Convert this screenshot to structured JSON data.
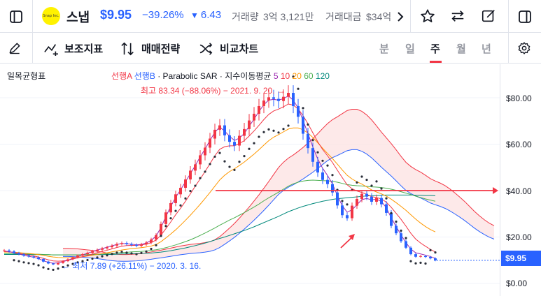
{
  "header": {
    "logo_text": "Snap Inc.",
    "symbol_name": "스냅",
    "price": "$9.95",
    "change_pct": "−39.26%",
    "change_abs": "6.43",
    "volume_label": "거래량",
    "volume_value": "3억 3,121만",
    "amount_label": "거래대금",
    "amount_value": "$34억",
    "icons": [
      "sidebar-left-icon",
      "chevron-right-icon",
      "star-icon",
      "compare-icon",
      "edit-icon",
      "sidebar-right-icon"
    ]
  },
  "toolbar": {
    "tools": [
      {
        "label": "보조지표",
        "icon": "indicators-icon"
      },
      {
        "label": "매매전략",
        "icon": "strategy-icon"
      },
      {
        "label": "비교차트",
        "icon": "compare-chart-icon"
      }
    ],
    "periods": [
      "분",
      "일",
      "주",
      "월",
      "년"
    ],
    "active_period": "주",
    "settings_icon": "gear-icon",
    "draw_icon": "pen-icon"
  },
  "legend": {
    "indicator": "일목균형표",
    "items": [
      {
        "text": "선행A",
        "color": "#f23645"
      },
      {
        "text": " 선행B",
        "color": "#2962ff"
      },
      {
        "text": " · Parabolic SAR · 지수이동평균 ",
        "color": "#131722"
      },
      {
        "text": "5",
        "color": "#9c27b0"
      },
      {
        "text": " 10",
        "color": "#f23645"
      },
      {
        "text": " 20",
        "color": "#ff9800"
      },
      {
        "text": " 60",
        "color": "#4caf50"
      },
      {
        "text": " 120",
        "color": "#00897b"
      }
    ]
  },
  "annotations": {
    "high": "최고 83.34 (−88.06%) − 2021. 9. 20.",
    "low": "최저 7.89 (+26.11%) − 2020. 3. 16."
  },
  "axis": {
    "ticks": [
      "$80.00",
      "$60.00",
      "$40.00",
      "$20.00",
      "$0.00"
    ],
    "last_price": "$9.95"
  },
  "colors": {
    "up": "#f23645",
    "down": "#2962ff",
    "accent": "#2962ff",
    "cloud_up": "#fce4e4",
    "cloud_down": "#e3ecfd"
  },
  "chart_data": {
    "type": "line",
    "ylim": [
      0,
      90
    ],
    "ytick_values": [
      80,
      60,
      40,
      20,
      0
    ],
    "high": 83.34,
    "low": 7.89,
    "last": 9.95,
    "horizontal_line": 40,
    "close": [
      14.2,
      13.8,
      13.1,
      12.6,
      12.0,
      11.6,
      11.2,
      10.5,
      9.4,
      8.6,
      8.2,
      8.8,
      9.6,
      10.4,
      11.2,
      12.0,
      12.6,
      13.2,
      13.9,
      14.5,
      15.1,
      15.6,
      16.3,
      17.0,
      17.4,
      17.0,
      16.6,
      16.2,
      16.8,
      17.6,
      18.9,
      20.8,
      25.6,
      30.6,
      34.6,
      38.4,
      41.2,
      44.8,
      48.6,
      51.3,
      55.2,
      58.5,
      62.4,
      66.2,
      68.1,
      63.8,
      61.0,
      59.4,
      63.6,
      66.5,
      70.2,
      73.1,
      76.4,
      78.8,
      80.2,
      79.5,
      78.6,
      80.4,
      82.1,
      76.4,
      71.8,
      64.5,
      58.3,
      52.4,
      47.8,
      44.6,
      42.8,
      39.2,
      33.6,
      29.4,
      28.1,
      33.5,
      36.4,
      38.6,
      37.4,
      35.2,
      36.8,
      34.1,
      30.4,
      24.8,
      21.6,
      18.2,
      15.4,
      12.6,
      11.5,
      11.8,
      11.4,
      10.8,
      9.95
    ],
    "ema5": [
      14.0,
      13.7,
      13.2,
      12.7,
      12.1,
      11.7,
      11.3,
      10.7,
      9.8,
      9.1,
      8.7,
      8.9,
      9.4,
      10.0,
      10.8,
      11.6,
      12.3,
      13.0,
      13.7,
      14.4,
      15.0,
      15.6,
      16.2,
      16.8,
      17.2,
      17.1,
      16.9,
      16.6,
      16.8,
      17.4,
      18.6,
      20.4,
      24.1,
      28.8,
      33.2,
      37.1,
      40.3,
      43.8,
      47.3,
      50.8,
      54.5,
      57.9,
      61.6,
      65.1,
      67.4,
      65.6,
      63.4,
      61.6,
      62.6,
      64.6,
      67.7,
      70.8,
      74.1,
      77.0,
      79.0,
      79.3,
      79.0,
      79.6,
      80.8,
      78.9,
      75.6,
      70.2,
      64.6,
      58.8,
      53.6,
      49.6,
      46.5,
      42.9,
      37.9,
      33.5,
      30.7,
      31.7,
      33.9,
      36.1,
      36.6,
      36.0,
      36.3,
      35.3,
      32.6,
      28.3,
      24.5,
      20.9,
      17.6,
      14.8,
      13.2,
      12.7,
      12.2,
      11.6,
      10.8
    ],
    "ema10": [
      13.8,
      13.6,
      13.4,
      13.0,
      12.6,
      12.2,
      11.8,
      11.4,
      10.8,
      10.2,
      9.7,
      9.6,
      9.7,
      10.0,
      10.5,
      11.0,
      11.5,
      12.0,
      12.6,
      13.2,
      13.8,
      14.3,
      14.9,
      15.5,
      16.0,
      16.3,
      16.4,
      16.4,
      16.6,
      16.9,
      17.6,
      18.7,
      20.8,
      23.6,
      26.5,
      29.6,
      32.4,
      35.4,
      38.6,
      41.9,
      45.0,
      48.2,
      51.6,
      55.0,
      57.8,
      58.9,
      59.3,
      59.3,
      60.3,
      61.5,
      63.5,
      65.7,
      68.1,
      70.6,
      72.8,
      74.3,
      75.1,
      76.1,
      77.3,
      76.8,
      75.2,
      72.3,
      68.8,
      64.9,
      61.0,
      57.7,
      55.0,
      52.1,
      48.8,
      45.6,
      42.5,
      40.8,
      39.8,
      39.2,
      38.4,
      37.4,
      37.0,
      36.4,
      35.0,
      32.8,
      30.2,
      27.6,
      24.7,
      21.6,
      19.1,
      17.4,
      16.0,
      14.7,
      13.5
    ],
    "ema20": [
      13.5,
      13.5,
      13.4,
      13.3,
      13.1,
      12.9,
      12.7,
      12.4,
      12.1,
      11.7,
      11.4,
      11.2,
      11.1,
      11.1,
      11.2,
      11.3,
      11.5,
      11.8,
      12.1,
      12.5,
      12.8,
      13.2,
      13.6,
      14.0,
      14.4,
      14.7,
      15.0,
      15.2,
      15.4,
      15.7,
      16.1,
      16.8,
      18.0,
      19.6,
      21.3,
      23.1,
      25.1,
      27.2,
      29.4,
      31.7,
      34.1,
      36.6,
      39.2,
      41.9,
      44.6,
      46.6,
      48.2,
      49.4,
      50.8,
      52.3,
      54.0,
      55.7,
      57.6,
      59.6,
      61.5,
      63.0,
      64.1,
      65.3,
      66.5,
      67.0,
      67.0,
      66.2,
      64.8,
      62.9,
      60.6,
      58.2,
      56.0,
      53.8,
      51.4,
      48.9,
      46.6,
      45.0,
      43.8,
      42.8,
      41.6,
      40.3,
      39.4,
      38.6,
      37.6,
      36.3,
      34.8,
      33.2,
      31.5,
      29.6,
      27.7,
      26.0,
      24.5,
      23.2,
      22.2
    ],
    "ema60": [
      12.8,
      12.8,
      12.8,
      12.8,
      12.7,
      12.7,
      12.6,
      12.6,
      12.5,
      12.4,
      12.3,
      12.3,
      12.3,
      12.3,
      12.3,
      12.3,
      12.4,
      12.4,
      12.5,
      12.6,
      12.7,
      12.8,
      13.0,
      13.1,
      13.3,
      13.4,
      13.6,
      13.7,
      13.8,
      14.0,
      14.2,
      14.5,
      14.9,
      15.4,
      16.0,
      16.6,
      17.3,
      18.0,
      18.8,
      19.7,
      20.7,
      21.7,
      22.8,
      23.9,
      25.1,
      26.2,
      27.3,
      28.3,
      29.4,
      30.5,
      31.7,
      32.9,
      34.2,
      35.6,
      36.9,
      38.1,
      39.3,
      40.6,
      41.9,
      42.9,
      43.6,
      44.1,
      44.4,
      44.5,
      44.4,
      44.3,
      44.2,
      44.0,
      43.6,
      43.1,
      42.6,
      42.3,
      42.1,
      42.0,
      41.8,
      41.6,
      41.5,
      41.3,
      41.0,
      40.6,
      40.1,
      39.5,
      38.9,
      38.3,
      37.6,
      37.0,
      36.4,
      35.9,
      35.4
    ],
    "ema120": [
      12.5,
      12.5,
      12.5,
      12.5,
      12.5,
      12.5,
      12.4,
      12.4,
      12.4,
      12.4,
      12.3,
      12.3,
      12.3,
      12.3,
      12.3,
      12.3,
      12.3,
      12.3,
      12.4,
      12.4,
      12.4,
      12.5,
      12.5,
      12.6,
      12.7,
      12.7,
      12.8,
      12.9,
      13.0,
      13.0,
      13.1,
      13.3,
      13.5,
      13.8,
      14.1,
      14.5,
      14.9,
      15.3,
      15.8,
      16.3,
      16.8,
      17.4,
      18.0,
      18.7,
      19.4,
      20.0,
      20.7,
      21.4,
      22.1,
      22.8,
      23.6,
      24.4,
      25.3,
      26.2,
      27.1,
      28.0,
      28.9,
      29.9,
      30.9,
      31.7,
      32.5,
      33.2,
      33.8,
      34.4,
      34.9,
      35.4,
      35.8,
      36.2,
      36.5,
      36.7,
      36.9,
      37.1,
      37.3,
      37.5,
      37.7,
      37.8,
      37.9,
      38.0,
      38.1,
      38.1,
      38.1,
      38.1,
      38.1,
      38.1,
      38.0,
      38.0,
      37.9,
      37.9,
      37.8
    ]
  }
}
